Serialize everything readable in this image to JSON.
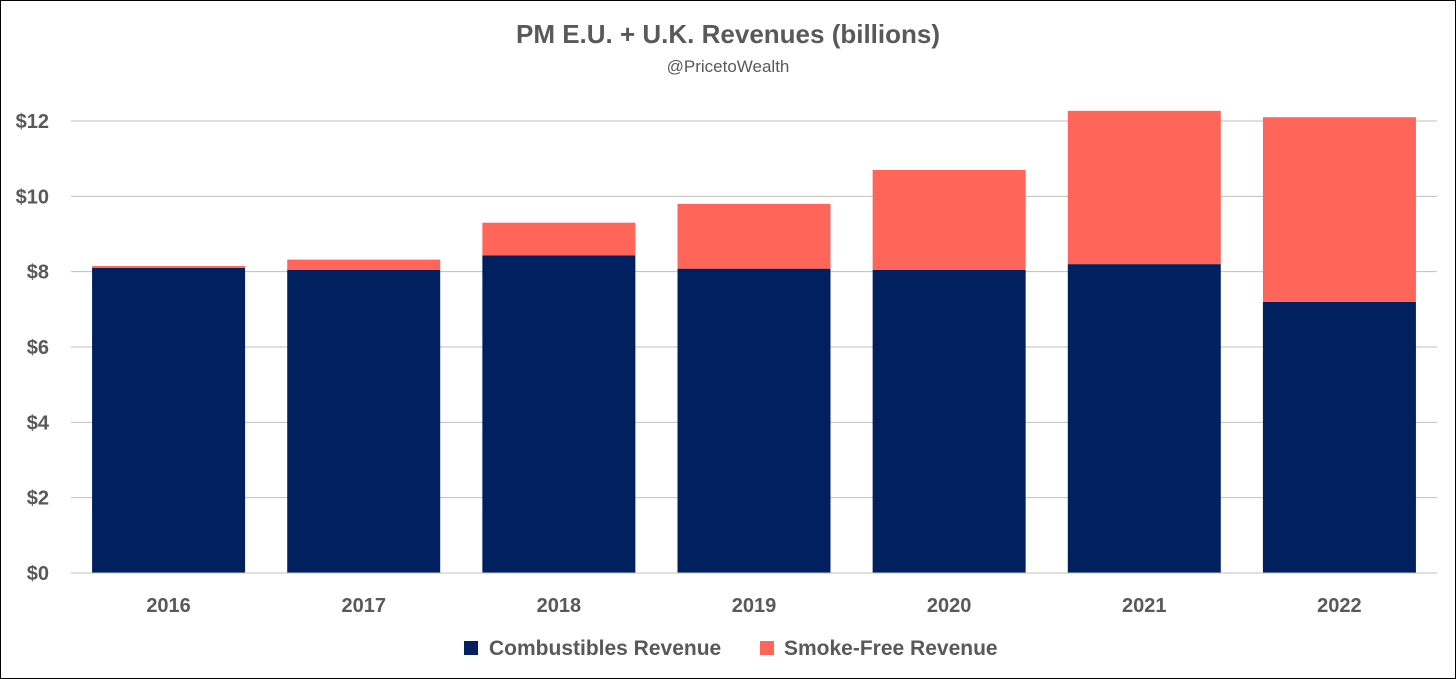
{
  "chart_data": {
    "type": "bar",
    "stacked": true,
    "title": "PM E.U. + U.K. Revenues (billions)",
    "subtitle": "@PricetoWealth",
    "categories": [
      "2016",
      "2017",
      "2018",
      "2019",
      "2020",
      "2021",
      "2022"
    ],
    "series": [
      {
        "name": "Combustibles Revenue",
        "color": "#002060",
        "values": [
          8.1,
          8.05,
          8.43,
          8.08,
          8.05,
          8.2,
          7.2
        ]
      },
      {
        "name": "Smoke-Free Revenue",
        "color": "#ff6558",
        "values": [
          0.05,
          0.27,
          0.87,
          1.72,
          2.65,
          4.07,
          4.9
        ]
      }
    ],
    "ylim": [
      0,
      12
    ],
    "yticks": [
      0,
      2,
      4,
      6,
      8,
      10,
      12
    ],
    "ytick_labels": [
      "$0",
      "$2",
      "$4",
      "$6",
      "$8",
      "$10",
      "$12"
    ],
    "xlabel": "",
    "ylabel": "",
    "grid": true,
    "legend_position": "bottom"
  }
}
